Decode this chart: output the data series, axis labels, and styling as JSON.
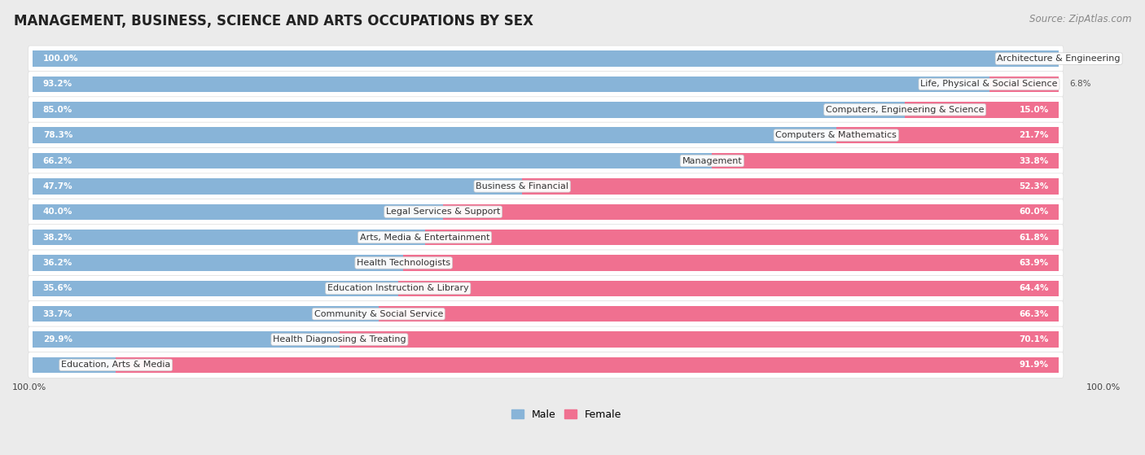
{
  "title": "MANAGEMENT, BUSINESS, SCIENCE AND ARTS OCCUPATIONS BY SEX",
  "source": "Source: ZipAtlas.com",
  "categories": [
    "Architecture & Engineering",
    "Life, Physical & Social Science",
    "Computers, Engineering & Science",
    "Computers & Mathematics",
    "Management",
    "Business & Financial",
    "Legal Services & Support",
    "Arts, Media & Entertainment",
    "Health Technologists",
    "Education Instruction & Library",
    "Community & Social Service",
    "Health Diagnosing & Treating",
    "Education, Arts & Media"
  ],
  "male": [
    100.0,
    93.2,
    85.0,
    78.3,
    66.2,
    47.7,
    40.0,
    38.2,
    36.2,
    35.6,
    33.7,
    29.9,
    8.1
  ],
  "female": [
    0.0,
    6.8,
    15.0,
    21.7,
    33.8,
    52.3,
    60.0,
    61.8,
    63.9,
    64.4,
    66.3,
    70.1,
    91.9
  ],
  "male_color": "#88b4d8",
  "female_color": "#f07090",
  "bg_color": "#ebebeb",
  "bar_bg_color": "#ffffff",
  "row_bg_color": "#f7f7f7",
  "title_fontsize": 12,
  "source_fontsize": 8.5,
  "label_fontsize": 8.0,
  "bar_label_fontsize": 7.5
}
